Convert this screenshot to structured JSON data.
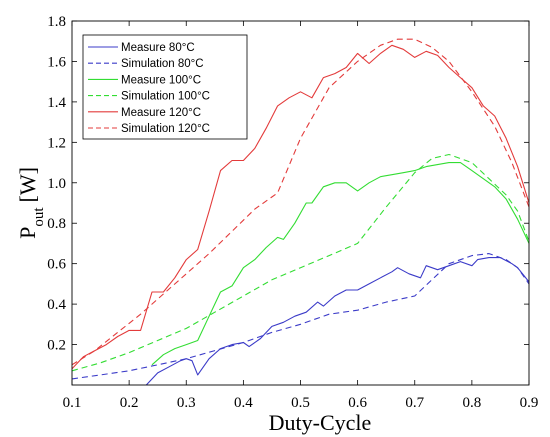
{
  "chart_data": {
    "type": "line",
    "xlabel": "Duty-Cycle",
    "ylabel": "P",
    "ylabel_sub": "out",
    "ylabel_unit": "[W]",
    "xlim": [
      0.1,
      0.9
    ],
    "ylim": [
      0,
      1.8
    ],
    "xticks": [
      0.1,
      0.2,
      0.3,
      0.4,
      0.5,
      0.6,
      0.7,
      0.8,
      0.9
    ],
    "xtick_labels": [
      "0.1",
      "0.2",
      "0.3",
      "0.4",
      "0.5",
      "0.6",
      "0.7",
      "0.8",
      "0.9"
    ],
    "yticks": [
      0.2,
      0.4,
      0.6,
      0.8,
      1.0,
      1.2,
      1.4,
      1.6,
      1.8
    ],
    "ytick_labels": [
      "0.2",
      "0.4",
      "0.6",
      "0.8",
      "1.0",
      "1.2",
      "1.4",
      "1.6",
      "1.8"
    ],
    "grid": false,
    "legend_position": "top-left",
    "series": [
      {
        "name": "Measure 80°C",
        "color": "#3b3bc8",
        "dash": "solid",
        "x": [
          0.23,
          0.25,
          0.27,
          0.29,
          0.3,
          0.31,
          0.32,
          0.34,
          0.36,
          0.38,
          0.4,
          0.41,
          0.43,
          0.45,
          0.47,
          0.49,
          0.51,
          0.53,
          0.54,
          0.56,
          0.58,
          0.6,
          0.62,
          0.64,
          0.66,
          0.67,
          0.69,
          0.71,
          0.72,
          0.74,
          0.76,
          0.78,
          0.8,
          0.81,
          0.83,
          0.85,
          0.87,
          0.88,
          0.9
        ],
        "y": [
          0.0,
          0.06,
          0.09,
          0.12,
          0.13,
          0.12,
          0.05,
          0.13,
          0.18,
          0.2,
          0.21,
          0.19,
          0.23,
          0.29,
          0.31,
          0.34,
          0.36,
          0.41,
          0.39,
          0.44,
          0.47,
          0.47,
          0.5,
          0.53,
          0.56,
          0.58,
          0.55,
          0.53,
          0.59,
          0.57,
          0.59,
          0.61,
          0.59,
          0.62,
          0.63,
          0.63,
          0.6,
          0.58,
          0.51
        ]
      },
      {
        "name": "Simulation 80°C",
        "color": "#3b3bc8",
        "dash": "dashed",
        "x": [
          0.1,
          0.15,
          0.2,
          0.25,
          0.3,
          0.35,
          0.4,
          0.45,
          0.5,
          0.55,
          0.6,
          0.65,
          0.7,
          0.73,
          0.76,
          0.8,
          0.83,
          0.86,
          0.88,
          0.9
        ],
        "y": [
          0.03,
          0.05,
          0.07,
          0.1,
          0.13,
          0.17,
          0.21,
          0.26,
          0.3,
          0.35,
          0.37,
          0.41,
          0.44,
          0.52,
          0.6,
          0.64,
          0.65,
          0.62,
          0.58,
          0.5
        ]
      },
      {
        "name": "Measure 100°C",
        "color": "#33dd33",
        "dash": "solid",
        "x": [
          0.24,
          0.26,
          0.28,
          0.3,
          0.32,
          0.34,
          0.36,
          0.38,
          0.4,
          0.42,
          0.44,
          0.46,
          0.47,
          0.49,
          0.51,
          0.52,
          0.54,
          0.56,
          0.58,
          0.6,
          0.62,
          0.64,
          0.66,
          0.68,
          0.7,
          0.72,
          0.74,
          0.76,
          0.78,
          0.8,
          0.82,
          0.84,
          0.86,
          0.88,
          0.9
        ],
        "y": [
          0.1,
          0.15,
          0.18,
          0.2,
          0.22,
          0.34,
          0.46,
          0.49,
          0.58,
          0.62,
          0.68,
          0.73,
          0.72,
          0.8,
          0.9,
          0.9,
          0.98,
          1.0,
          1.0,
          0.96,
          1.0,
          1.03,
          1.04,
          1.05,
          1.06,
          1.08,
          1.09,
          1.1,
          1.1,
          1.06,
          1.02,
          0.98,
          0.92,
          0.82,
          0.7
        ]
      },
      {
        "name": "Simulation 100°C",
        "color": "#33dd33",
        "dash": "dashed",
        "x": [
          0.1,
          0.15,
          0.2,
          0.25,
          0.3,
          0.35,
          0.4,
          0.45,
          0.5,
          0.55,
          0.6,
          0.65,
          0.7,
          0.73,
          0.76,
          0.8,
          0.83,
          0.86,
          0.88,
          0.9
        ],
        "y": [
          0.07,
          0.11,
          0.16,
          0.22,
          0.28,
          0.36,
          0.44,
          0.52,
          0.58,
          0.64,
          0.7,
          0.88,
          1.05,
          1.12,
          1.14,
          1.1,
          1.02,
          0.94,
          0.86,
          0.71
        ]
      },
      {
        "name": "Measure 120°C",
        "color": "#e33b3b",
        "dash": "solid",
        "x": [
          0.1,
          0.12,
          0.14,
          0.16,
          0.18,
          0.2,
          0.22,
          0.24,
          0.26,
          0.28,
          0.3,
          0.32,
          0.34,
          0.36,
          0.38,
          0.4,
          0.42,
          0.44,
          0.46,
          0.48,
          0.5,
          0.52,
          0.54,
          0.56,
          0.58,
          0.6,
          0.62,
          0.64,
          0.66,
          0.68,
          0.7,
          0.72,
          0.74,
          0.76,
          0.78,
          0.8,
          0.82,
          0.84,
          0.86,
          0.88,
          0.9
        ],
        "y": [
          0.08,
          0.14,
          0.17,
          0.2,
          0.24,
          0.27,
          0.27,
          0.46,
          0.46,
          0.53,
          0.62,
          0.67,
          0.86,
          1.06,
          1.11,
          1.11,
          1.17,
          1.27,
          1.38,
          1.42,
          1.45,
          1.42,
          1.52,
          1.54,
          1.57,
          1.64,
          1.59,
          1.64,
          1.68,
          1.66,
          1.62,
          1.65,
          1.63,
          1.57,
          1.52,
          1.47,
          1.38,
          1.33,
          1.22,
          1.08,
          0.9
        ]
      },
      {
        "name": "Simulation 120°C",
        "color": "#e33b3b",
        "dash": "dashed",
        "x": [
          0.1,
          0.14,
          0.18,
          0.22,
          0.26,
          0.3,
          0.34,
          0.38,
          0.42,
          0.46,
          0.5,
          0.55,
          0.6,
          0.64,
          0.67,
          0.7,
          0.73,
          0.76,
          0.8,
          0.84,
          0.87,
          0.9
        ],
        "y": [
          0.1,
          0.17,
          0.26,
          0.35,
          0.45,
          0.55,
          0.65,
          0.76,
          0.87,
          0.95,
          1.22,
          1.47,
          1.6,
          1.68,
          1.71,
          1.71,
          1.67,
          1.6,
          1.45,
          1.28,
          1.1,
          0.88
        ]
      }
    ]
  }
}
